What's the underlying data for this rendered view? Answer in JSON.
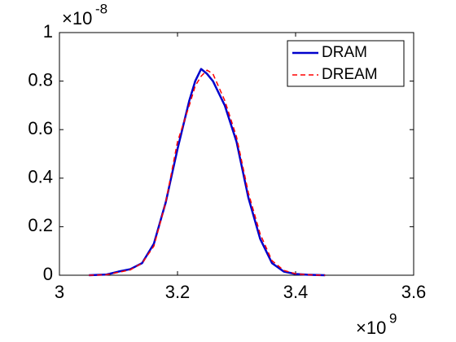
{
  "chart_data": {
    "type": "line",
    "x": [
      3.05,
      3.08,
      3.1,
      3.12,
      3.14,
      3.16,
      3.18,
      3.2,
      3.22,
      3.23,
      3.24,
      3.25,
      3.26,
      3.28,
      3.3,
      3.32,
      3.34,
      3.36,
      3.38,
      3.4,
      3.42,
      3.45
    ],
    "series": [
      {
        "name": "DRAM",
        "color": "#0000cc",
        "dash": "solid",
        "values": [
          0,
          0.003,
          0.015,
          0.025,
          0.05,
          0.13,
          0.3,
          0.52,
          0.72,
          0.8,
          0.85,
          0.83,
          0.8,
          0.7,
          0.55,
          0.32,
          0.15,
          0.05,
          0.015,
          0.005,
          0.002,
          0
        ]
      },
      {
        "name": "DREAM",
        "color": "#ff0000",
        "dash": "dashed",
        "values": [
          0,
          0.002,
          0.012,
          0.022,
          0.05,
          0.12,
          0.3,
          0.55,
          0.7,
          0.78,
          0.82,
          0.845,
          0.83,
          0.72,
          0.57,
          0.34,
          0.17,
          0.06,
          0.02,
          0.006,
          0.002,
          0
        ]
      }
    ],
    "xlim": [
      3,
      3.6
    ],
    "xticks": [
      3,
      3.2,
      3.4,
      3.6
    ],
    "ylim": [
      0,
      1
    ],
    "yticks": [
      0,
      0.2,
      0.4,
      0.6,
      0.8,
      1
    ],
    "x_exponent": {
      "base": "×10",
      "power": "9"
    },
    "y_exponent": {
      "base": "×10",
      "power": "-8"
    },
    "legend": "northeast",
    "grid": false
  }
}
